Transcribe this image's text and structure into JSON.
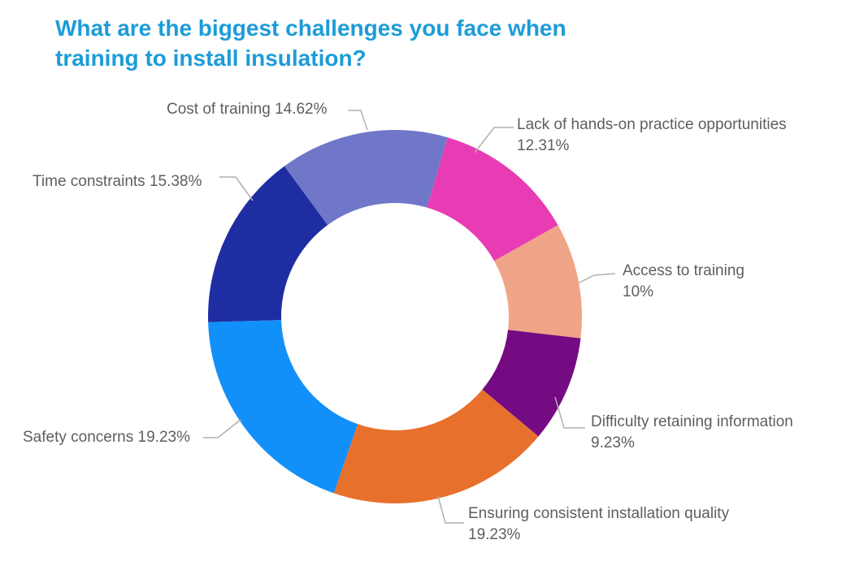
{
  "page": {
    "background": "#ffffff"
  },
  "title": {
    "text": "What are the biggest challenges you face when training to install insulation?",
    "line1": "What are the biggest challenges you face when",
    "line2": "training to install insulation?",
    "color": "#1C9CD8"
  },
  "chart_data": {
    "type": "pie",
    "subtype": "donut",
    "title": "What are the biggest challenges you face when training to install insulation?",
    "unit": "percent",
    "legend": "none",
    "data_labels": "outside-with-leader-lines",
    "layout": {
      "start_angle_deg": -36.3,
      "inner_radius_ratio": 0.61
    },
    "label_color": "#605E5C",
    "leader_line_color": "#B3AFAC",
    "slices": [
      {
        "label": "Cost of training",
        "value": 14.62,
        "value_text": "14.62%",
        "color": "#7077C9"
      },
      {
        "label": "Lack of hands-on practice opportunities",
        "value": 12.31,
        "value_text": "12.31%",
        "color": "#E83CB5"
      },
      {
        "label": "Access to training",
        "value": 10,
        "value_text": "10%",
        "color": "#F0A488"
      },
      {
        "label": "Difficulty retaining information",
        "value": 9.23,
        "value_text": "9.23%",
        "color": "#740B83"
      },
      {
        "label": "Ensuring consistent installation quality",
        "value": 19.23,
        "value_text": "19.23%",
        "color": "#E8702D"
      },
      {
        "label": "Safety concerns",
        "value": 19.23,
        "value_text": "19.23%",
        "color": "#1290F9"
      },
      {
        "label": "Time constraints",
        "value": 15.38,
        "value_text": "15.38%",
        "color": "#1F2DA3"
      }
    ]
  }
}
